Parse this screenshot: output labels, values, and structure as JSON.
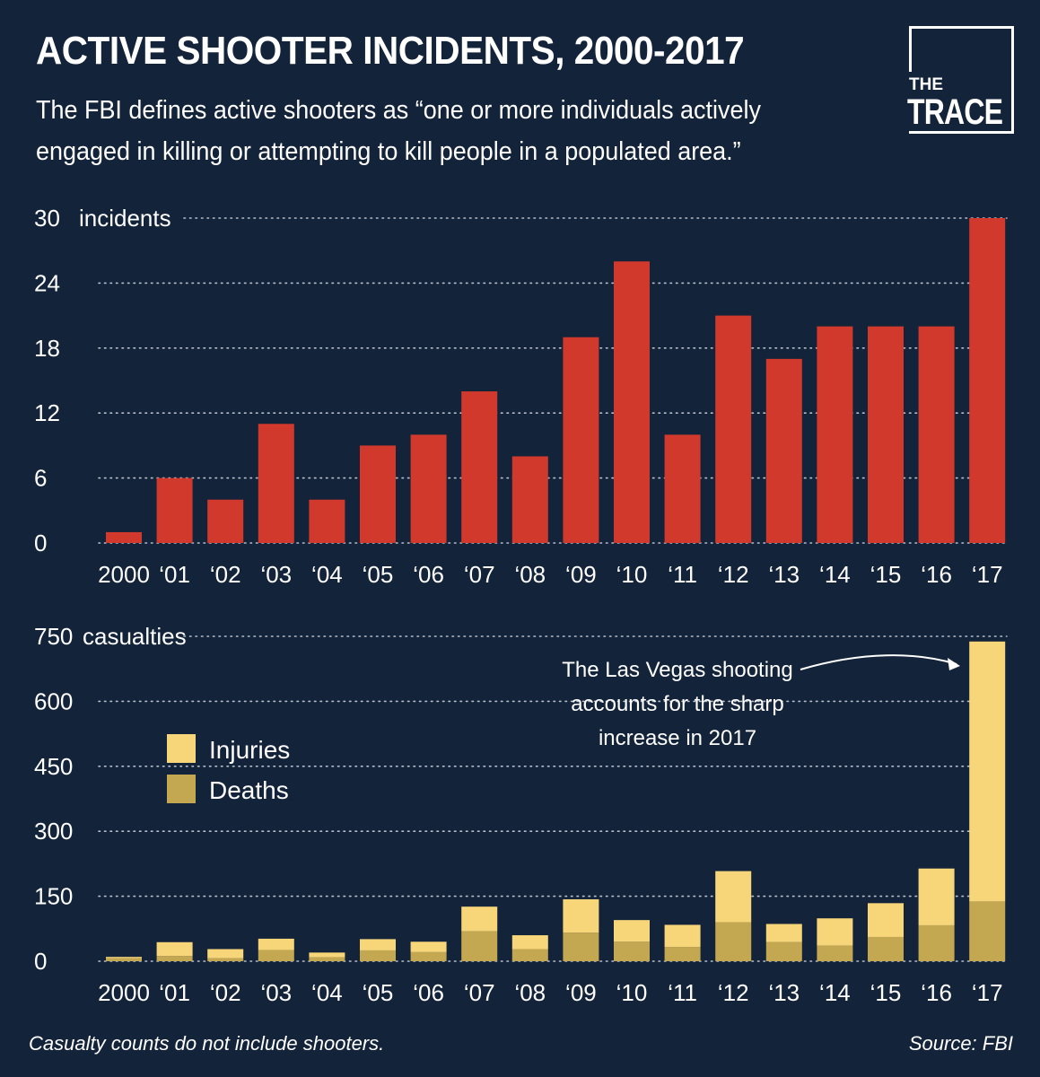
{
  "header": {
    "title": "ACTIVE SHOOTER INCIDENTS, 2000-2017",
    "subtitle": "The FBI defines active shooters as “one or more individuals actively engaged in killing or attempting to kill people in a populated area.”"
  },
  "logo": {
    "line1": "THE",
    "line2": "TRACE"
  },
  "colors": {
    "background": "#13233a",
    "incidents_bar": "#d0392b",
    "injuries": "#f7d67a",
    "deaths": "#c4a751",
    "grid": "#b8c0cc"
  },
  "chart_data": [
    {
      "type": "bar",
      "title": "Active shooter incidents",
      "categories": [
        "2000",
        "‘01",
        "‘02",
        "‘03",
        "‘04",
        "‘05",
        "‘06",
        "‘07",
        "‘08",
        "‘09",
        "‘10",
        "‘11",
        "‘12",
        "‘13",
        "‘14",
        "‘15",
        "‘16",
        "‘17"
      ],
      "values": [
        1,
        6,
        4,
        11,
        4,
        9,
        10,
        14,
        8,
        19,
        26,
        10,
        21,
        17,
        20,
        20,
        20,
        30
      ],
      "ylim": [
        0,
        30
      ],
      "yticks": [
        0,
        6,
        12,
        18,
        24,
        30
      ],
      "ytick_labels": [
        "0",
        "6",
        "12",
        "18",
        "24",
        "30"
      ],
      "ylabel": "incidents",
      "grid": true
    },
    {
      "type": "bar",
      "stacked": true,
      "title": "Casualties",
      "categories": [
        "2000",
        "‘01",
        "‘02",
        "‘03",
        "‘04",
        "‘05",
        "‘06",
        "‘07",
        "‘08",
        "‘09",
        "‘10",
        "‘11",
        "‘12",
        "‘13",
        "‘14",
        "‘15",
        "‘16",
        "‘17"
      ],
      "series": [
        {
          "name": "Deaths",
          "values": [
            7,
            12,
            7,
            26,
            9,
            25,
            21,
            69,
            28,
            66,
            45,
            33,
            90,
            44,
            36,
            56,
            83,
            138
          ]
        },
        {
          "name": "Injuries",
          "values": [
            3,
            32,
            21,
            26,
            11,
            26,
            24,
            57,
            32,
            77,
            50,
            51,
            118,
            42,
            63,
            78,
            131,
            600
          ]
        }
      ],
      "ylim": [
        0,
        750
      ],
      "yticks": [
        0,
        150,
        300,
        450,
        600,
        750
      ],
      "ytick_labels": [
        "0",
        "150",
        "300",
        "450",
        "600",
        "750"
      ],
      "ylabel": "casualties",
      "legend": [
        "Injuries",
        "Deaths"
      ],
      "legend_position": "upper-left",
      "annotation": {
        "lines": [
          "The Las Vegas shooting",
          "accounts for the sharp",
          "increase in 2017"
        ],
        "target": "‘17"
      },
      "grid": true
    }
  ],
  "footer": {
    "note": "Casualty counts do not include shooters.",
    "source": "Source: FBI"
  }
}
